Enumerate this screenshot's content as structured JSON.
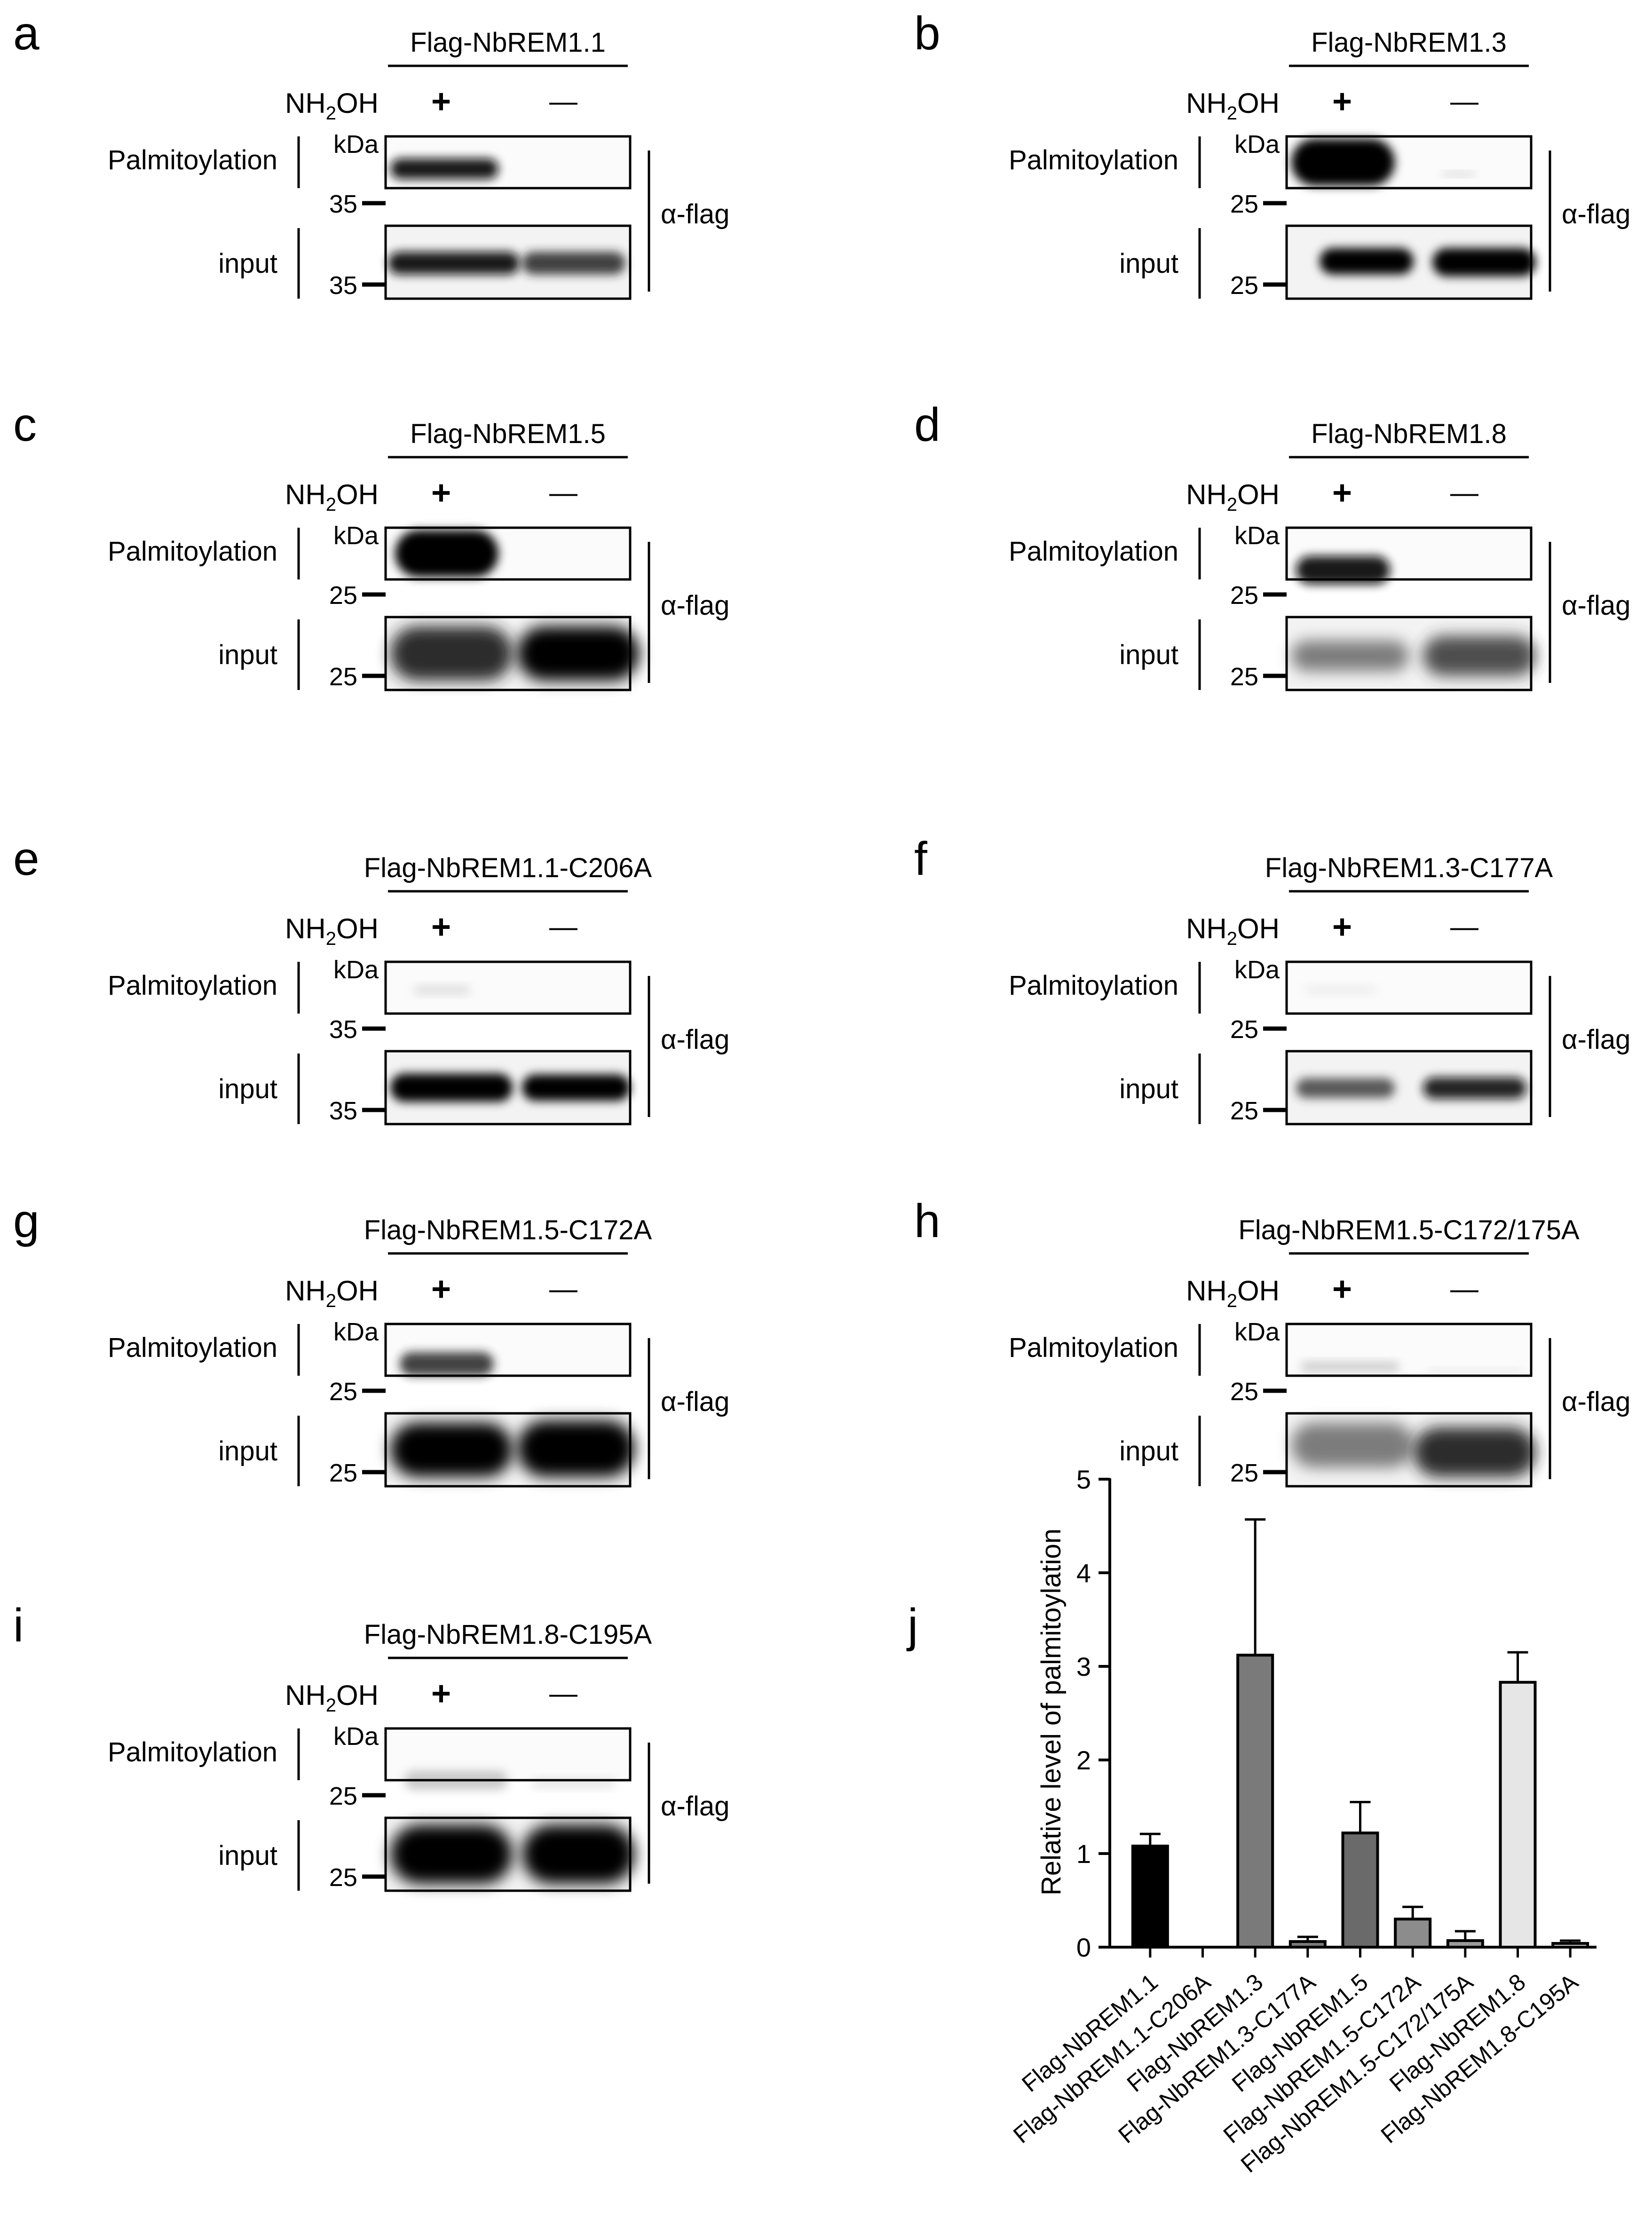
{
  "panels": [
    {
      "letter": "a",
      "title": "Flag-NbREM1.1",
      "treatment": "NH",
      "treatment_tail": "OH",
      "treatment_sub": "2",
      "plus": "+",
      "minus": "—",
      "row1_label": "Palmitoylation",
      "row2_label": "input",
      "unit": "kDa",
      "marker1": "35",
      "marker2": "35",
      "antibody": "α-flag"
    },
    {
      "letter": "b",
      "title": "Flag-NbREM1.3",
      "treatment": "NH",
      "treatment_tail": "OH",
      "treatment_sub": "2",
      "plus": "+",
      "minus": "—",
      "row1_label": "Palmitoylation",
      "row2_label": "input",
      "unit": "kDa",
      "marker1": "25",
      "marker2": "25",
      "antibody": "α-flag"
    },
    {
      "letter": "c",
      "title": "Flag-NbREM1.5",
      "treatment": "NH",
      "treatment_tail": "OH",
      "treatment_sub": "2",
      "plus": "+",
      "minus": "—",
      "row1_label": "Palmitoylation",
      "row2_label": "input",
      "unit": "kDa",
      "marker1": "25",
      "marker2": "25",
      "antibody": "α-flag"
    },
    {
      "letter": "d",
      "title": "Flag-NbREM1.8",
      "treatment": "NH",
      "treatment_tail": "OH",
      "treatment_sub": "2",
      "plus": "+",
      "minus": "—",
      "row1_label": "Palmitoylation",
      "row2_label": "input",
      "unit": "kDa",
      "marker1": "25",
      "marker2": "25",
      "antibody": "α-flag"
    },
    {
      "letter": "e",
      "title": "Flag-NbREM1.1-C206A",
      "treatment": "NH",
      "treatment_tail": "OH",
      "treatment_sub": "2",
      "plus": "+",
      "minus": "—",
      "row1_label": "Palmitoylation",
      "row2_label": "input",
      "unit": "kDa",
      "marker1": "35",
      "marker2": "35",
      "antibody": "α-flag"
    },
    {
      "letter": "f",
      "title": "Flag-NbREM1.3-C177A",
      "treatment": "NH",
      "treatment_tail": "OH",
      "treatment_sub": "2",
      "plus": "+",
      "minus": "—",
      "row1_label": "Palmitoylation",
      "row2_label": "input",
      "unit": "kDa",
      "marker1": "25",
      "marker2": "25",
      "antibody": "α-flag"
    },
    {
      "letter": "g",
      "title": "Flag-NbREM1.5-C172A",
      "treatment": "NH",
      "treatment_tail": "OH",
      "treatment_sub": "2",
      "plus": "+",
      "minus": "—",
      "row1_label": "Palmitoylation",
      "row2_label": "input",
      "unit": "kDa",
      "marker1": "25",
      "marker2": "25",
      "antibody": "α-flag"
    },
    {
      "letter": "h",
      "title": "Flag-NbREM1.5-C172/175A",
      "treatment": "NH",
      "treatment_tail": "OH",
      "treatment_sub": "2",
      "plus": "+",
      "minus": "—",
      "row1_label": "Palmitoylation",
      "row2_label": "input",
      "unit": "kDa",
      "marker1": "25",
      "marker2": "25",
      "antibody": "α-flag"
    },
    {
      "letter": "i",
      "title": "Flag-NbREM1.8-C195A",
      "treatment": "NH",
      "treatment_tail": "OH",
      "treatment_sub": "2",
      "plus": "+",
      "minus": "—",
      "row1_label": "Palmitoylation",
      "row2_label": "input",
      "unit": "kDa",
      "marker1": "25",
      "marker2": "25",
      "antibody": "α-flag"
    }
  ],
  "chart_letter": "j",
  "chart_data": {
    "type": "bar",
    "title": "",
    "xlabel": "",
    "ylabel": "Relative level of palmitoylation",
    "ylim": [
      0,
      5
    ],
    "yticks": [
      "0",
      "1",
      "2",
      "3",
      "4",
      "5"
    ],
    "categories": [
      "Flag-NbREM1.1",
      "Flag-NbREM1.1-C206A",
      "Flag-NbREM1.3",
      "Flag-NbREM1.3-C177A",
      "Flag-NbREM1.5",
      "Flag-NbREM1.5-C172A",
      "Flag-NbREM1.5-C172/175A",
      "Flag-NbREM1.8",
      "Flag-NbREM1.8-C195A"
    ],
    "values": [
      1.08,
      0.0,
      3.12,
      0.06,
      1.22,
      0.3,
      0.07,
      2.83,
      0.04
    ],
    "errors": [
      0.13,
      0.0,
      1.45,
      0.05,
      0.33,
      0.13,
      0.1,
      0.32,
      0.03
    ],
    "colors": [
      "#000000",
      "#ffffff",
      "#7a7a7a",
      "#7a7a7a",
      "#6a6a6a",
      "#8c8c8c",
      "#9a9a9a",
      "#e6e6e6",
      "#d0d0d0"
    ],
    "grid": false
  }
}
